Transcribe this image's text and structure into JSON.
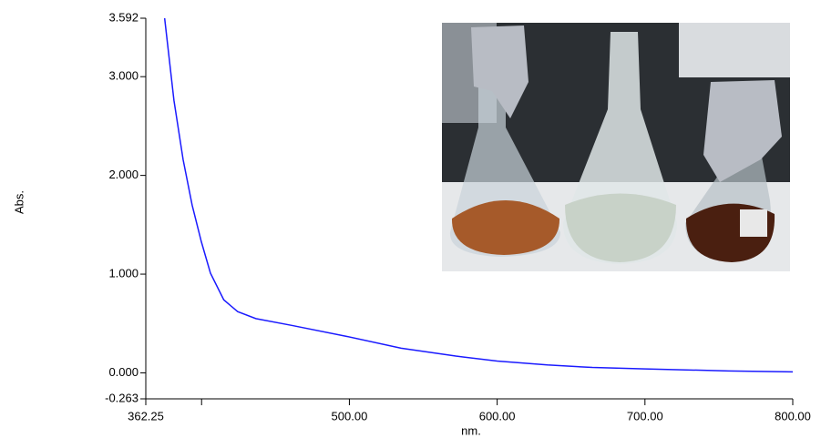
{
  "chart_data": {
    "type": "line",
    "x_label": "nm.",
    "y_label": "Abs.",
    "x": [
      375,
      381.3,
      387.5,
      393.6,
      399.8,
      406,
      415,
      424.4,
      436.7,
      461.3,
      498,
      535,
      572,
      600,
      634,
      664.4,
      700,
      756.7,
      800
    ],
    "values": [
      3.592,
      2.76,
      2.16,
      1.7,
      1.33,
      1.01,
      0.74,
      0.62,
      0.55,
      0.48,
      0.37,
      0.25,
      0.17,
      0.12,
      0.08,
      0.055,
      0.04,
      0.02,
      0.01
    ],
    "color": "#1a1aff",
    "xlim": [
      362.25,
      800
    ],
    "xticks": [
      362.25,
      {
        "value": 400,
        "label": null
      },
      {
        "value": 500,
        "label": "500.00"
      },
      {
        "value": 600,
        "label": "600.00"
      },
      {
        "value": 700,
        "label": "700.00"
      },
      {
        "value": 800,
        "label": "800.00"
      }
    ],
    "ylim": [
      -0.263,
      3.592
    ],
    "yticks": [
      -0.263,
      {
        "value": 0,
        "label": "0.000"
      },
      {
        "value": 1,
        "label": "1.000"
      },
      {
        "value": 2,
        "label": "2.000"
      },
      {
        "value": 3,
        "label": "3.000"
      },
      3.592
    ],
    "grid": false
  }
}
